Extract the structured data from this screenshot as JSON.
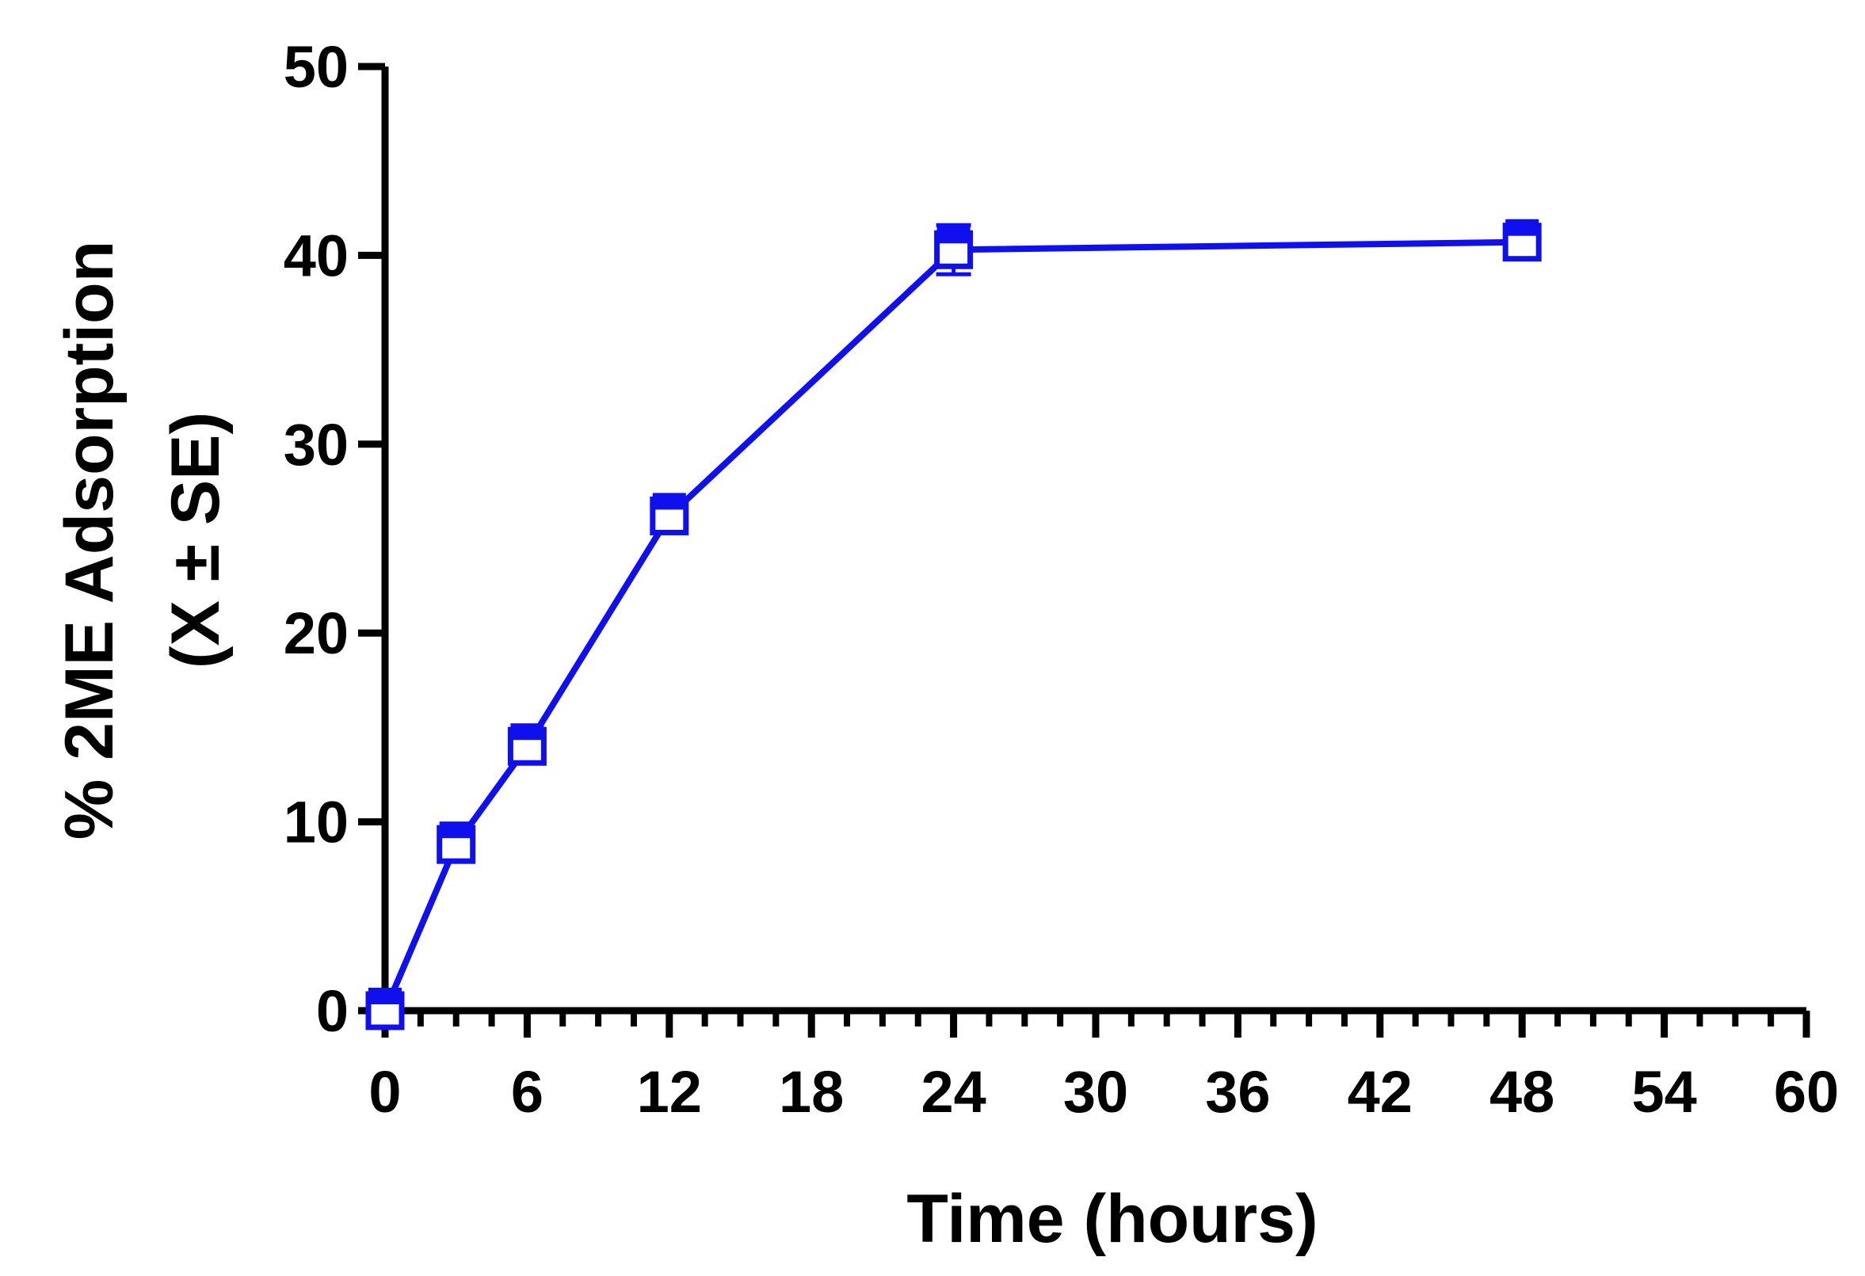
{
  "chart_data": {
    "type": "line",
    "title": "",
    "xlabel": "Time (hours)",
    "ylabel_lines": [
      "% 2ME Adsorption",
      "(X ± SE)"
    ],
    "xlim": [
      0,
      60
    ],
    "ylim": [
      0,
      50
    ],
    "x_ticks": [
      0,
      6,
      12,
      18,
      24,
      30,
      36,
      42,
      48,
      54,
      60
    ],
    "x_minor_step": 1.5,
    "y_ticks": [
      0,
      10,
      20,
      30,
      40,
      50
    ],
    "grid": false,
    "legend": "none",
    "colors": {
      "axis": "#000000",
      "series": "#1010ee"
    },
    "series": [
      {
        "marker": "half-filled-square",
        "x": [
          0,
          3,
          6,
          12,
          24,
          48
        ],
        "y": [
          0,
          8.8,
          14.0,
          26.2,
          40.3,
          40.7
        ],
        "error": [
          0,
          0.3,
          0.4,
          0.4,
          1.3,
          0.3
        ]
      }
    ]
  }
}
